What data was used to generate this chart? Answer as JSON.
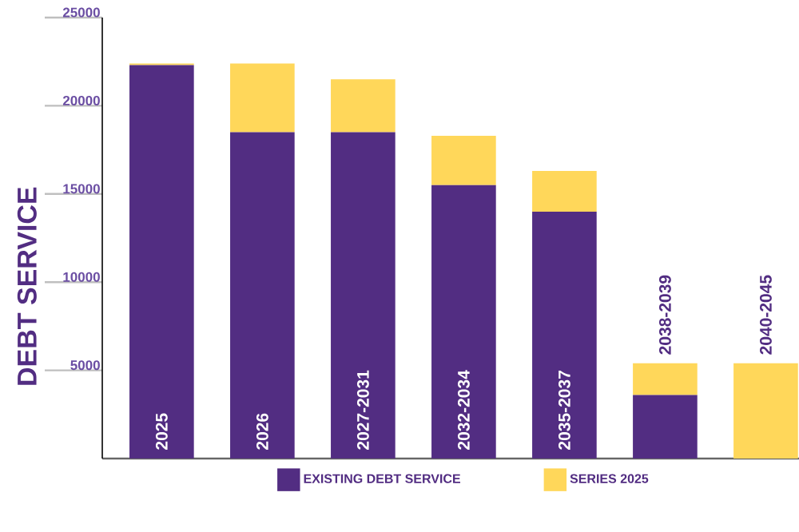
{
  "chart_data": {
    "type": "bar",
    "stacked": true,
    "ylabel": "DEBT SERVICE",
    "legend": "bottom",
    "categories": [
      "2025",
      "2026",
      "2027-2031",
      "2032-2034",
      "2035-2037",
      "2038-2039",
      "2040-2045"
    ],
    "series": [
      {
        "name": "EXISTING DEBT SERVICE",
        "color": "#522d82",
        "values": [
          22300,
          18500,
          18500,
          15500,
          14000,
          3600,
          0
        ]
      },
      {
        "name": "SERIES 2025",
        "color": "#ffd75a",
        "values": [
          100,
          3900,
          3000,
          2800,
          2300,
          1800,
          5400
        ]
      }
    ],
    "ylim": [
      0,
      25000
    ],
    "yticks": [
      5000,
      10000,
      15000,
      20000,
      25000
    ]
  }
}
